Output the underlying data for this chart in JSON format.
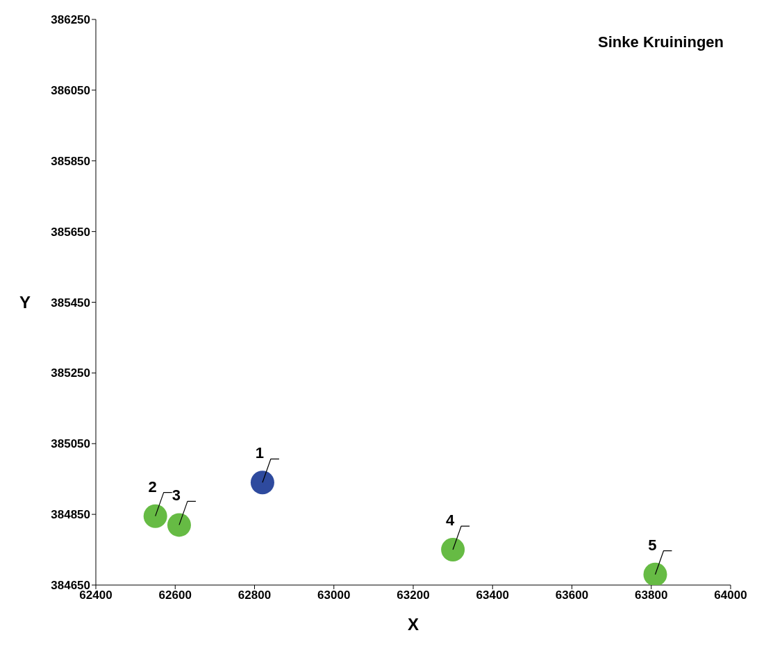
{
  "chart_data": {
    "type": "scatter",
    "title": "Sinke Kruiningen",
    "xlabel": "X",
    "ylabel": "Y",
    "series": [
      {
        "color": "#2e4a9e",
        "x": [
          62820
        ],
        "values": [
          384940
        ]
      },
      {
        "color": "#66bb44",
        "x": [
          62550,
          62610,
          63300,
          63810
        ],
        "values": [
          384845,
          384820,
          384750,
          384680
        ]
      }
    ],
    "annotations": [
      {
        "text": "1",
        "x": 62820,
        "y": 384940
      },
      {
        "text": "2",
        "x": 62550,
        "y": 384845
      },
      {
        "text": "3",
        "x": 62610,
        "y": 384820
      },
      {
        "text": "4",
        "x": 63300,
        "y": 384750
      },
      {
        "text": "5",
        "x": 63810,
        "y": 384680
      }
    ],
    "xlim": [
      62400,
      64000
    ],
    "xticks": [
      62400,
      62600,
      62800,
      63000,
      63200,
      63400,
      63600,
      63800,
      64000
    ],
    "ylim": [
      384650,
      386250
    ],
    "yticks": [
      384650,
      384850,
      385050,
      385250,
      385450,
      385650,
      385850,
      386050,
      386250
    ],
    "grid": false,
    "legend": false,
    "marker": "circle"
  }
}
